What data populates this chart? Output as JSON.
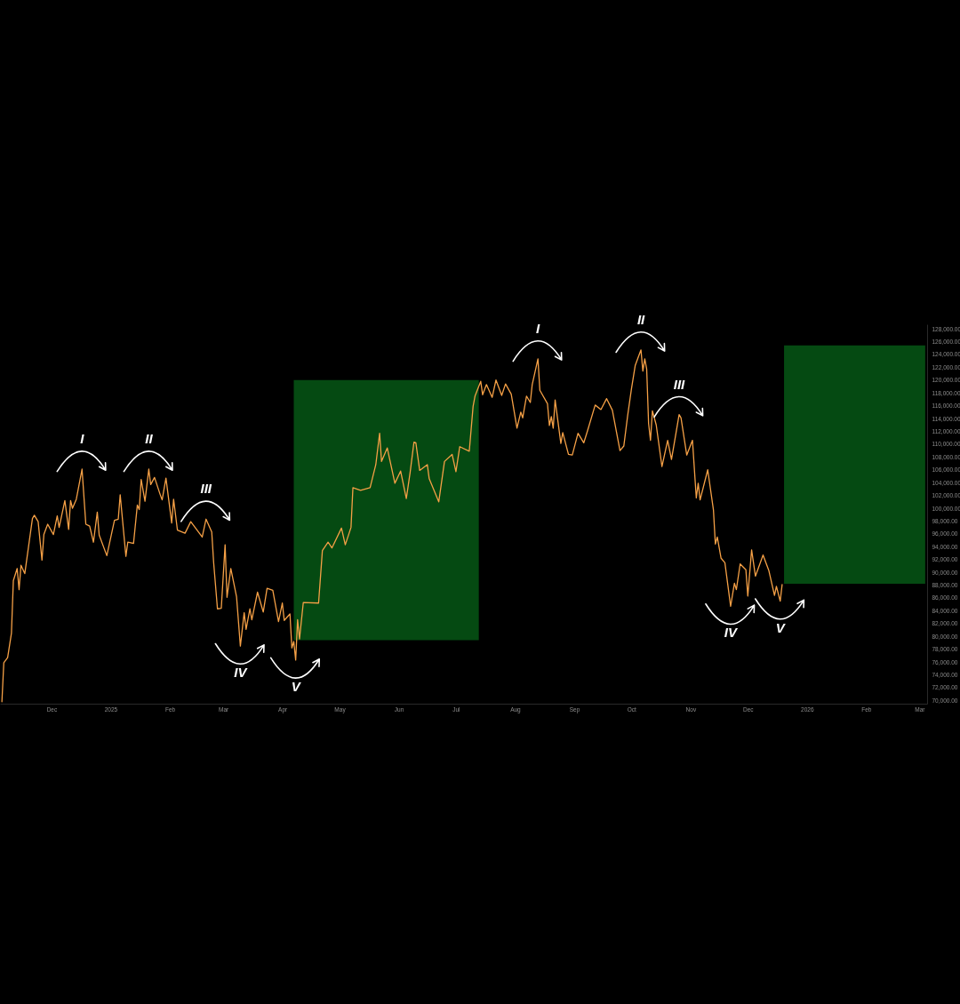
{
  "chart_data": {
    "type": "line",
    "x": [
      "2024-11-05",
      "2024-11-06",
      "2024-11-08",
      "2024-11-10",
      "2024-11-11",
      "2024-11-13",
      "2024-11-14",
      "2024-11-15",
      "2024-11-17",
      "2024-11-21",
      "2024-11-22",
      "2024-11-24",
      "2024-11-26",
      "2024-11-27",
      "2024-11-29",
      "2024-12-02",
      "2024-12-04",
      "2024-12-05",
      "2024-12-08",
      "2024-12-10",
      "2024-12-11",
      "2024-12-12",
      "2024-12-14",
      "2024-12-17",
      "2024-12-19",
      "2024-12-21",
      "2024-12-23",
      "2024-12-25",
      "2024-12-26",
      "2024-12-30",
      "2025-01-03",
      "2025-01-05",
      "2025-01-06",
      "2025-01-09",
      "2025-01-10",
      "2025-01-13",
      "2025-01-15",
      "2025-01-16",
      "2025-01-17",
      "2025-01-19",
      "2025-01-21",
      "2025-01-22",
      "2025-01-24",
      "2025-01-27",
      "2025-01-28",
      "2025-01-30",
      "2025-02-02",
      "2025-02-03",
      "2025-02-05",
      "2025-02-09",
      "2025-02-12",
      "2025-02-18",
      "2025-02-20",
      "2025-02-23",
      "2025-02-24",
      "2025-02-26",
      "2025-02-28",
      "2025-03-02",
      "2025-03-03",
      "2025-03-05",
      "2025-03-08",
      "2025-03-10",
      "2025-03-12",
      "2025-03-13",
      "2025-03-15",
      "2025-03-16",
      "2025-03-19",
      "2025-03-22",
      "2025-03-24",
      "2025-03-27",
      "2025-03-30",
      "2025-04-01",
      "2025-04-02",
      "2025-04-05",
      "2025-04-06",
      "2025-04-07",
      "2025-04-08",
      "2025-04-09",
      "2025-04-10",
      "2025-04-12",
      "2025-04-20",
      "2025-04-22",
      "2025-04-25",
      "2025-04-27",
      "2025-05-02",
      "2025-05-04",
      "2025-05-07",
      "2025-05-08",
      "2025-05-12",
      "2025-05-17",
      "2025-05-20",
      "2025-05-22",
      "2025-05-23",
      "2025-05-26",
      "2025-05-30",
      "2025-06-02",
      "2025-06-05",
      "2025-06-07",
      "2025-06-09",
      "2025-06-10",
      "2025-06-12",
      "2025-06-16",
      "2025-06-17",
      "2025-06-22",
      "2025-06-25",
      "2025-06-29",
      "2025-07-01",
      "2025-07-03",
      "2025-07-08",
      "2025-07-10",
      "2025-07-11",
      "2025-07-14",
      "2025-07-15",
      "2025-07-17",
      "2025-07-20",
      "2025-07-22",
      "2025-07-25",
      "2025-07-27",
      "2025-07-30",
      "2025-08-02",
      "2025-08-04",
      "2025-08-05",
      "2025-08-07",
      "2025-08-09",
      "2025-08-10",
      "2025-08-13",
      "2025-08-14",
      "2025-08-18",
      "2025-08-19",
      "2025-08-20",
      "2025-08-21",
      "2025-08-22",
      "2025-08-25",
      "2025-08-26",
      "2025-08-29",
      "2025-08-31",
      "2025-09-03",
      "2025-09-06",
      "2025-09-08",
      "2025-09-12",
      "2025-09-15",
      "2025-09-18",
      "2025-09-21",
      "2025-09-25",
      "2025-09-27",
      "2025-09-29",
      "2025-10-01",
      "2025-10-03",
      "2025-10-06",
      "2025-10-07",
      "2025-10-08",
      "2025-10-09",
      "2025-10-10",
      "2025-10-11",
      "2025-10-12",
      "2025-10-14",
      "2025-10-17",
      "2025-10-20",
      "2025-10-22",
      "2025-10-26",
      "2025-10-27",
      "2025-10-30",
      "2025-11-02",
      "2025-11-04",
      "2025-11-05",
      "2025-11-06",
      "2025-11-10",
      "2025-11-13",
      "2025-11-14",
      "2025-11-15",
      "2025-11-17",
      "2025-11-19",
      "2025-11-22",
      "2025-11-24",
      "2025-11-25",
      "2025-11-27",
      "2025-11-30",
      "2025-12-01",
      "2025-12-03",
      "2025-12-05",
      "2025-12-09",
      "2025-12-12",
      "2025-12-15",
      "2025-12-16",
      "2025-12-18",
      "2025-12-19"
    ],
    "series": [
      {
        "color": "#f5a046",
        "values": [
          69800,
          75900,
          76700,
          80500,
          88700,
          90600,
          87300,
          91100,
          89800,
          98400,
          98900,
          97900,
          91900,
          95900,
          97500,
          95900,
          98800,
          97000,
          101200,
          96700,
          101200,
          100000,
          101400,
          106100,
          97500,
          97200,
          94700,
          99400,
          95800,
          92600,
          98100,
          98300,
          102100,
          92500,
          94700,
          94500,
          100500,
          99800,
          104500,
          101100,
          106100,
          103700,
          104800,
          102100,
          101300,
          104700,
          97700,
          101400,
          96600,
          96100,
          97900,
          95500,
          98300,
          96300,
          91500,
          84300,
          84400,
          94300,
          86100,
          90600,
          86200,
          78500,
          83700,
          81100,
          84300,
          82600,
          86900,
          83800,
          87500,
          87200,
          82300,
          85200,
          82500,
          83500,
          78200,
          79200,
          76300,
          82600,
          79600,
          85300,
          85200,
          93400,
          94700,
          93800,
          96900,
          94300,
          97000,
          103200,
          102800,
          103200,
          106800,
          111700,
          107300,
          109400,
          103900,
          105800,
          101500,
          105600,
          110300,
          110200,
          105900,
          106800,
          104600,
          101000,
          107300,
          108400,
          105700,
          109600,
          108900,
          115900,
          117500,
          119800,
          117700,
          119300,
          117300,
          120000,
          117600,
          119400,
          117800,
          112500,
          115000,
          114100,
          117500,
          116500,
          119300,
          123300,
          118400,
          116300,
          112900,
          114300,
          112500,
          116900,
          110100,
          111800,
          108400,
          108300,
          111700,
          110200,
          112100,
          116100,
          115400,
          117100,
          115300,
          109000,
          109700,
          114400,
          118600,
          122300,
          124700,
          121400,
          123300,
          121700,
          113200,
          110600,
          115200,
          113000,
          106500,
          110600,
          107600,
          114600,
          114100,
          108300,
          110600,
          101600,
          103900,
          101300,
          106000,
          99700,
          94400,
          95500,
          92200,
          91500,
          84700,
          88300,
          87300,
          91300,
          90400,
          86300,
          93500,
          89400,
          92700,
          90300,
          86400,
          87800,
          85500,
          88100
        ]
      },
      {
        "type": "area",
        "color": "#054a12",
        "x": [
          "2025-04-07",
          "2025-07-13"
        ],
        "values": [
          null,
          null
        ],
        "lower": [
          79400,
          79400
        ],
        "upper": [
          120000,
          120000
        ]
      },
      {
        "type": "area",
        "color": "#054a12",
        "x": [
          "2025-12-20",
          "2026-03-04"
        ],
        "values": [
          null,
          null
        ],
        "lower": [
          88200,
          88200
        ],
        "upper": [
          125400,
          125400
        ]
      }
    ],
    "xlim": [
      "2024-11-04",
      "2026-03-05"
    ],
    "ylim": [
      69500,
      128700
    ],
    "xticks": [
      {
        "value": "2024-12-01",
        "label": "Dec"
      },
      {
        "value": "2025-01-01",
        "label": "2025"
      },
      {
        "value": "2025-02-01",
        "label": "Feb"
      },
      {
        "value": "2025-03-01",
        "label": "Mar"
      },
      {
        "value": "2025-04-01",
        "label": "Apr"
      },
      {
        "value": "2025-05-01",
        "label": "May"
      },
      {
        "value": "2025-06-01",
        "label": "Jun"
      },
      {
        "value": "2025-07-01",
        "label": "Jul"
      },
      {
        "value": "2025-08-01",
        "label": "Aug"
      },
      {
        "value": "2025-09-01",
        "label": "Sep"
      },
      {
        "value": "2025-10-01",
        "label": "Oct"
      },
      {
        "value": "2025-11-01",
        "label": "Nov"
      },
      {
        "value": "2025-12-01",
        "label": "Dec"
      },
      {
        "value": "2026-01-01",
        "label": "2026"
      },
      {
        "value": "2026-02-01",
        "label": "Feb"
      },
      {
        "value": "2026-03-01",
        "label": "Mar"
      }
    ],
    "yticks": [
      {
        "value": 70000,
        "label": "70,000.00"
      },
      {
        "value": 72000,
        "label": "72,000.00"
      },
      {
        "value": 74000,
        "label": "74,000.00"
      },
      {
        "value": 76000,
        "label": "76,000.00"
      },
      {
        "value": 78000,
        "label": "78,000.00"
      },
      {
        "value": 80000,
        "label": "80,000.00"
      },
      {
        "value": 82000,
        "label": "82,000.00"
      },
      {
        "value": 84000,
        "label": "84,000.00"
      },
      {
        "value": 86000,
        "label": "86,000.00"
      },
      {
        "value": 88000,
        "label": "88,000.00"
      },
      {
        "value": 90000,
        "label": "90,000.00"
      },
      {
        "value": 92000,
        "label": "92,000.00"
      },
      {
        "value": 94000,
        "label": "94,000.00"
      },
      {
        "value": 96000,
        "label": "96,000.00"
      },
      {
        "value": 98000,
        "label": "98,000.00"
      },
      {
        "value": 100000,
        "label": "100,000.00"
      },
      {
        "value": 102000,
        "label": "102,000.00"
      },
      {
        "value": 104000,
        "label": "104,000.00"
      },
      {
        "value": 106000,
        "label": "106,000.00"
      },
      {
        "value": 108000,
        "label": "108,000.00"
      },
      {
        "value": 110000,
        "label": "110,000.00"
      },
      {
        "value": 112000,
        "label": "112,000.00"
      },
      {
        "value": 114000,
        "label": "114,000.00"
      },
      {
        "value": 116000,
        "label": "116,000.00"
      },
      {
        "value": 118000,
        "label": "118,000.00"
      },
      {
        "value": 120000,
        "label": "120,000.00"
      },
      {
        "value": 122000,
        "label": "122,000.00"
      },
      {
        "value": 124000,
        "label": "124,000.00"
      },
      {
        "value": 126000,
        "label": "126,000.00"
      },
      {
        "value": 128000,
        "label": "128,000.00"
      }
    ],
    "annotations": [
      {
        "text": "I",
        "x": "2024-12-17",
        "y": 106100
      },
      {
        "text": "II",
        "x": "2025-01-21",
        "y": 106100
      },
      {
        "text": "III",
        "x": "2025-02-20",
        "y": 98300
      },
      {
        "text": "IV",
        "x": "2025-03-10",
        "y": 78500
      },
      {
        "text": "V",
        "x": "2025-04-08",
        "y": 76300
      },
      {
        "text": "I",
        "x": "2025-08-13",
        "y": 123300
      },
      {
        "text": "II",
        "x": "2025-10-06",
        "y": 124700
      },
      {
        "text": "III",
        "x": "2025-10-26",
        "y": 114600
      },
      {
        "text": "IV",
        "x": "2025-11-22",
        "y": 84700
      },
      {
        "text": "V",
        "x": "2025-12-18",
        "y": 85500
      }
    ]
  }
}
